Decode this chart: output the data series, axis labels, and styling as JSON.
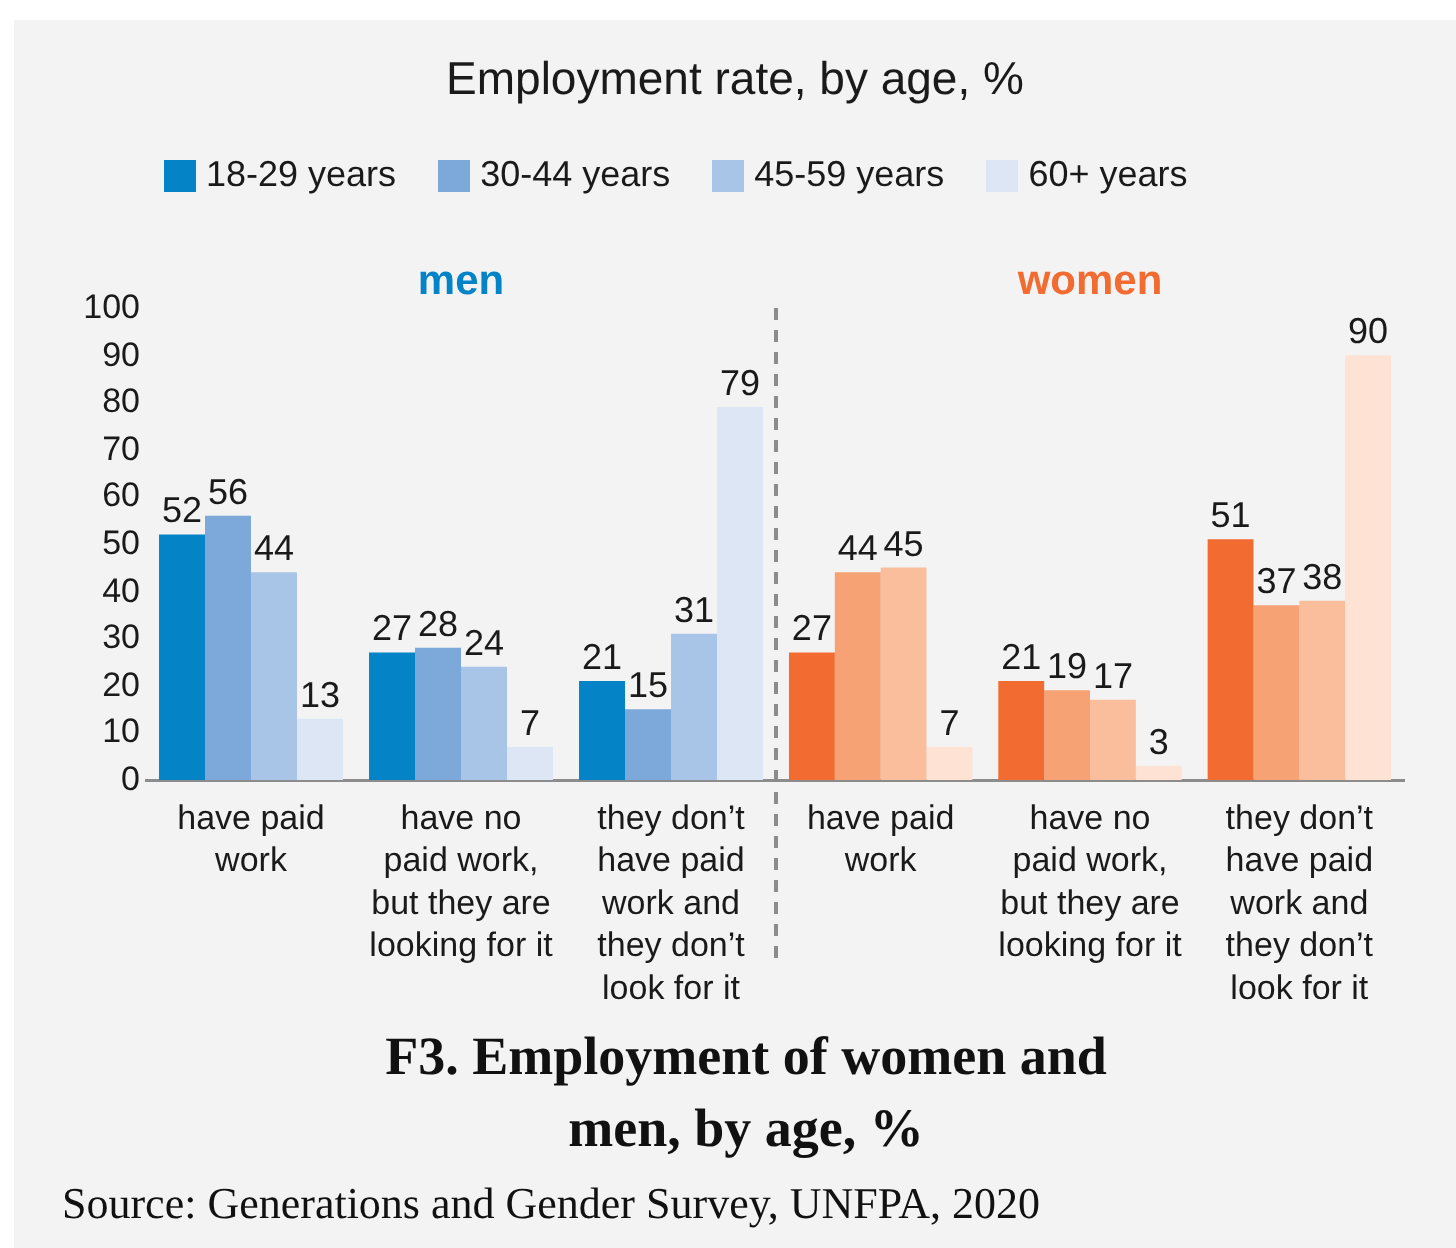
{
  "chart_data": [
    {
      "type": "bar",
      "title": "Employment rate, by age, %",
      "subtitle": "men",
      "categories": [
        "have paid work",
        "have no paid work, but they are looking for it",
        "they don’t have paid work and they don’t look for it"
      ],
      "series": [
        {
          "name": "18-29 years",
          "color": "#0583c7",
          "values": [
            52,
            27,
            21
          ]
        },
        {
          "name": "30-44 years",
          "color": "#7da9da",
          "values": [
            56,
            28,
            15
          ]
        },
        {
          "name": "45-59 years",
          "color": "#a8c4e6",
          "values": [
            44,
            24,
            31
          ]
        },
        {
          "name": "60+ years",
          "color": "#dce6f5",
          "values": [
            13,
            7,
            79
          ]
        }
      ],
      "ylim": [
        0,
        100
      ],
      "yticks": [
        0,
        10,
        20,
        30,
        40,
        50,
        60,
        70,
        80,
        90,
        100
      ],
      "legend": "top",
      "data_labels": true,
      "annotations": [
        "F3. Employment of women and men, by age, %",
        "Source: Generations and Gender Survey, UNFPA, 2020"
      ]
    },
    {
      "type": "bar",
      "subtitle": "women",
      "categories": [
        "have paid work",
        "have no paid work, but they are looking for it",
        "they don’t have paid work and they don’t look for it"
      ],
      "series": [
        {
          "color": "#f26c32",
          "values": [
            27,
            21,
            51
          ]
        },
        {
          "color": "#f6a274",
          "values": [
            44,
            19,
            37
          ]
        },
        {
          "color": "#fabe9c",
          "values": [
            45,
            17,
            38
          ]
        },
        {
          "color": "#fee2d3",
          "values": [
            7,
            3,
            90
          ]
        }
      ],
      "ylim": [
        0,
        100
      ],
      "tick_labels": "x",
      "data_labels": true
    }
  ]
}
